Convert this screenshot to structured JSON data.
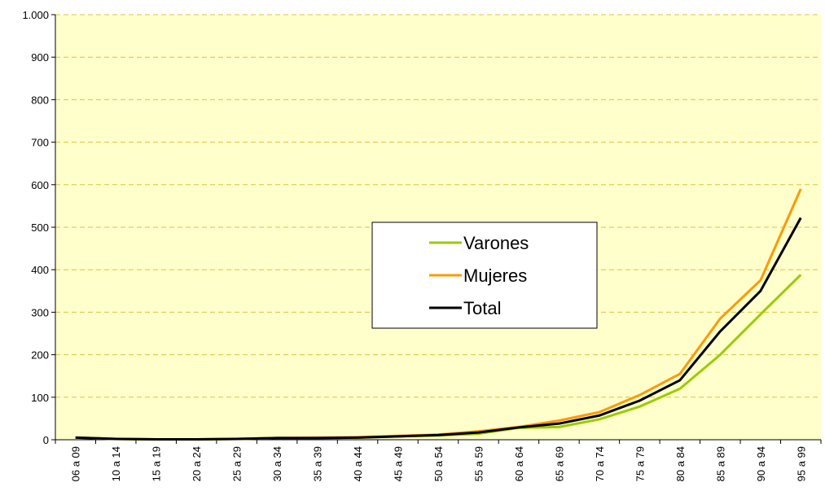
{
  "chart_data": {
    "type": "line",
    "categories": [
      "06 a 09",
      "10 a 14",
      "15 a 19",
      "20 a 24",
      "25 a 29",
      "30 a 34",
      "35 a 39",
      "40 a 44",
      "45 a 49",
      "50 a 54",
      "55 a 59",
      "60 a 64",
      "65 a 69",
      "70 a 74",
      "75 a 79",
      "80 a 84",
      "85 a 89",
      "90 a 94",
      "95 a 99"
    ],
    "series": [
      {
        "name": "Varones",
        "color": "#99cc00",
        "values": [
          5,
          2,
          1,
          1,
          2,
          4,
          4,
          5,
          8,
          10,
          14,
          28,
          30,
          48,
          78,
          120,
          200,
          295,
          388
        ]
      },
      {
        "name": "Mujeres",
        "color": "#ff9900",
        "values": [
          5,
          2,
          1,
          1,
          2,
          4,
          5,
          6,
          9,
          12,
          20,
          30,
          45,
          65,
          105,
          155,
          285,
          375,
          590
        ]
      },
      {
        "name": "Total",
        "color": "#000000",
        "values": [
          5,
          2,
          1,
          1,
          2,
          4,
          4,
          5,
          8,
          11,
          17,
          29,
          38,
          57,
          92,
          140,
          255,
          350,
          522
        ]
      }
    ],
    "ylim": [
      0,
      1000
    ],
    "yticks": [
      0,
      100,
      200,
      300,
      400,
      500,
      600,
      700,
      800,
      900,
      {
        "value": 1000,
        "label": "1.000"
      }
    ],
    "grid": true,
    "legend": "center"
  }
}
